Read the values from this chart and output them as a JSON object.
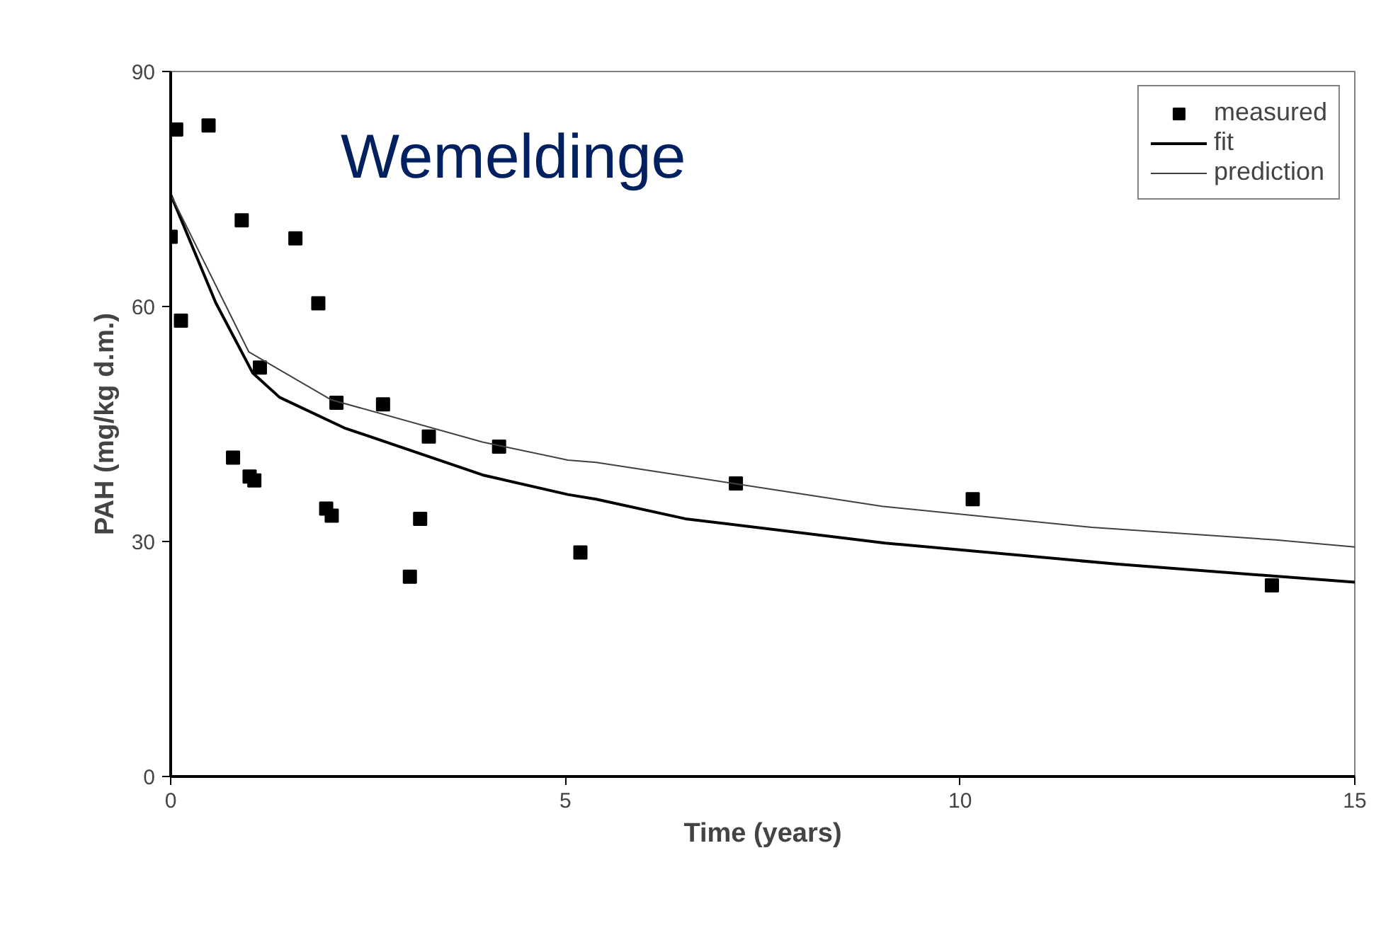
{
  "chart_data": {
    "type": "scatter",
    "title": "Wemeldinge",
    "xlabel": "Time (years)",
    "ylabel": "PAH (mg/kg d.m.)",
    "xlim": [
      0,
      15
    ],
    "xticks": [
      0,
      5,
      10,
      15
    ],
    "ylim": [
      0,
      90
    ],
    "yticks": [
      0,
      30,
      60,
      90
    ],
    "grid": false,
    "legend": "top right",
    "series": [
      {
        "name": "measured",
        "marker": "square",
        "color": "#000000",
        "x": [
          0,
          0.07,
          0.48,
          0.9,
          1.58,
          1.87,
          0.13,
          1.13,
          2.1,
          2.69,
          3.27,
          4.16,
          7.16,
          10.16,
          13.95,
          0.79,
          1.0,
          1.06,
          1.97,
          2.04,
          3.16,
          3.03,
          5.19
        ],
        "values": [
          68.9,
          82.6,
          83.1,
          71.0,
          68.7,
          60.4,
          58.2,
          52.2,
          47.7,
          47.5,
          43.4,
          42.1,
          37.4,
          35.4,
          24.4,
          40.7,
          38.3,
          37.8,
          34.2,
          33.3,
          32.9,
          25.5,
          28.6
        ]
      },
      {
        "name": "fit",
        "type": "line",
        "marker": "none",
        "line_style": "solid",
        "color": "#000000",
        "x": [
          0,
          0.57,
          1.04,
          1.38,
          2.2,
          3.95,
          5.03,
          5.39,
          6.52,
          9.05,
          12.0,
          15
        ],
        "values": [
          74.3,
          60.5,
          51.5,
          48.4,
          44.5,
          38.5,
          36.0,
          35.4,
          32.9,
          29.8,
          27.1,
          24.8
        ]
      },
      {
        "name": "prediction",
        "type": "line",
        "marker": "none",
        "line_style": "solid",
        "color": "#404040",
        "x": [
          0,
          0.99,
          2.03,
          3.95,
          5.03,
          5.39,
          9.01,
          11.67,
          14.0,
          15
        ],
        "values": [
          74.3,
          54.2,
          48.1,
          42.7,
          40.4,
          40.1,
          34.5,
          31.8,
          30.2,
          29.3
        ]
      }
    ]
  }
}
